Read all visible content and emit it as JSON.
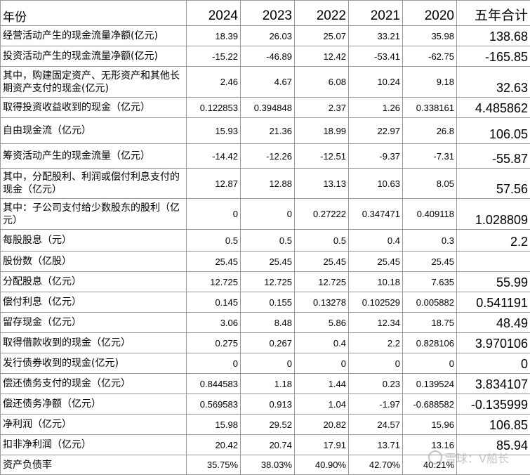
{
  "header": {
    "label": "年份",
    "years": [
      "2024",
      "2023",
      "2022",
      "2021",
      "2020"
    ],
    "total": "五年合计"
  },
  "rows": [
    {
      "label": "经营活动产生的现金流量净额(亿元)",
      "values": [
        "18.39",
        "26.03",
        "25.07",
        "33.21",
        "35.98"
      ],
      "total": "138.68"
    },
    {
      "label": "投资活动产生的现金流量净额(亿元)",
      "values": [
        "-15.22",
        "-46.89",
        "12.42",
        "-53.41",
        "-62.75"
      ],
      "total": "-165.85"
    },
    {
      "label": "其中，购建固定资产、无形资产和其他长期资产支付的现金(亿元)",
      "values": [
        "2.46",
        "4.67",
        "6.08",
        "10.24",
        "9.18"
      ],
      "total": "32.63"
    },
    {
      "label": "取得投资收益收到的现金（亿元）",
      "values": [
        "0.122853",
        "0.394848",
        "2.37",
        "1.26",
        "0.338161"
      ],
      "total": "4.485862"
    },
    {
      "label": "自由现金流（亿元）",
      "values": [
        "15.93",
        "21.36",
        "18.99",
        "22.97",
        "26.8"
      ],
      "total": "106.05"
    },
    {
      "label": "筹资活动产生的现金流量（亿元）",
      "values": [
        "-14.42",
        "-12.26",
        "-12.51",
        "-9.37",
        "-7.31"
      ],
      "total": "-55.87"
    },
    {
      "label": "其中，分配股利、利润或偿付利息支付的现金（亿元）",
      "values": [
        "12.87",
        "12.88",
        "13.13",
        "10.63",
        "8.05"
      ],
      "total": "57.56"
    },
    {
      "label": "其中：子公司支付给少数股东的股利（亿元）",
      "values": [
        "0",
        "0",
        "0.27222",
        "0.347471",
        "0.409118"
      ],
      "total": "1.028809"
    },
    {
      "label": "每股股息（元）",
      "values": [
        "0.5",
        "0.5",
        "0.5",
        "0.4",
        "0.3"
      ],
      "total": "2.2"
    },
    {
      "label": "股份数（亿股）",
      "values": [
        "25.45",
        "25.45",
        "25.45",
        "25.45",
        "25.45"
      ],
      "total": ""
    },
    {
      "label": "分配股息（亿元）",
      "values": [
        "12.725",
        "12.725",
        "12.725",
        "10.18",
        "7.635"
      ],
      "total": "55.99"
    },
    {
      "label": "偿付利息（亿元）",
      "values": [
        "0.145",
        "0.155",
        "0.13278",
        "0.102529",
        "0.005882"
      ],
      "total": "0.541191"
    },
    {
      "label": "留存现金（亿元）",
      "values": [
        "3.06",
        "8.48",
        "5.86",
        "12.34",
        "18.75"
      ],
      "total": "48.49"
    },
    {
      "label": "取得借款收到的现金（亿元）",
      "values": [
        "0.275",
        "0.267",
        "0.4",
        "2.2",
        "0.828106"
      ],
      "total": "3.970106"
    },
    {
      "label": "发行债券收到的现金(亿元)",
      "values": [
        "0",
        "0",
        "0",
        "0",
        "0"
      ],
      "total": "0"
    },
    {
      "label": "偿还债务支付的现金（亿元）",
      "values": [
        "0.844583",
        "1.18",
        "1.44",
        "0.23",
        "0.139524"
      ],
      "total": "3.834107"
    },
    {
      "label": "偿还债务净额（亿元）",
      "values": [
        "0.569583",
        "0.913",
        "1.04",
        "-1.97",
        "-0.688582"
      ],
      "total": "-0.135999"
    },
    {
      "label": "净利润（亿元）",
      "values": [
        "15.98",
        "29.52",
        "20.82",
        "24.57",
        "15.96"
      ],
      "total": "106.85"
    },
    {
      "label": "扣非净利润（亿元）",
      "values": [
        "20.42",
        "20.74",
        "17.91",
        "13.71",
        "13.16"
      ],
      "total": "85.94"
    },
    {
      "label": "资产负债率",
      "values": [
        "35.75%",
        "38.03%",
        "40.90%",
        "42.70%",
        "40.21%"
      ],
      "total": ""
    }
  ],
  "watermark": "雪球：V船长"
}
